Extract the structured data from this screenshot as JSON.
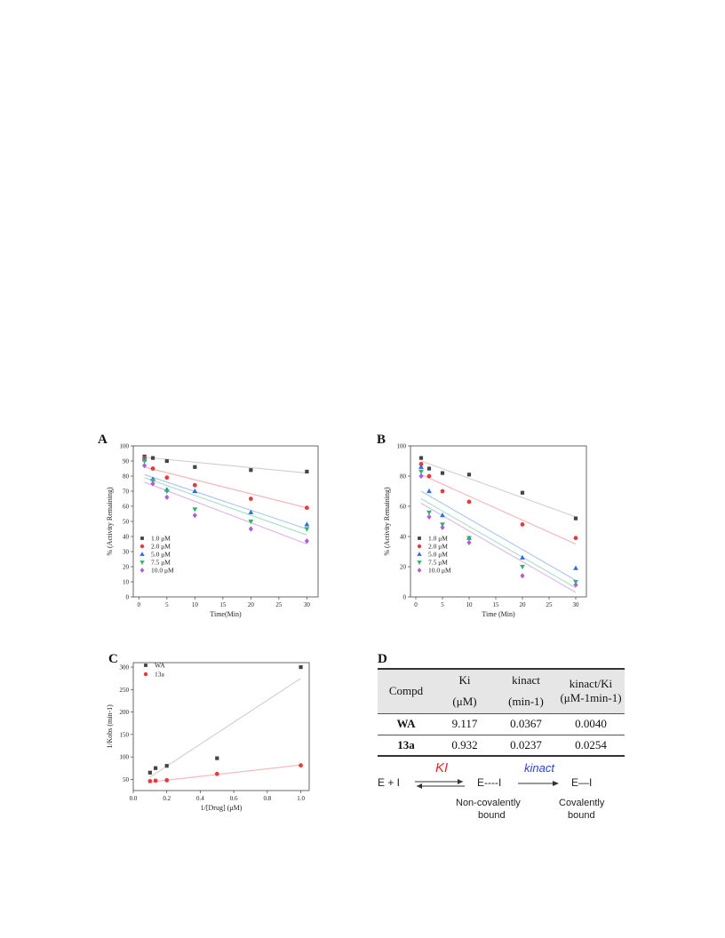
{
  "panels": {
    "a": "A",
    "b": "B",
    "c": "C",
    "d": "D"
  },
  "chart_data": [
    {
      "id": "A",
      "type": "scatter",
      "xlabel": "Time(Min)",
      "ylabel": "% (Activity Remaining)",
      "xlim": [
        -1,
        32
      ],
      "ylim": [
        0,
        100
      ],
      "xticks": [
        0,
        5,
        10,
        15,
        20,
        25,
        30
      ],
      "yticks": [
        0,
        10,
        20,
        30,
        40,
        50,
        60,
        70,
        80,
        90,
        100
      ],
      "legend_position": "bottom-left",
      "series": [
        {
          "name": "1.0 μM",
          "marker": "square",
          "color": "#444444",
          "line_color": "#cfcfcf",
          "x": [
            1,
            2.5,
            5,
            10,
            20,
            30
          ],
          "y": [
            93,
            92,
            90,
            86,
            84,
            83
          ],
          "fit": [
            92.5,
            82
          ]
        },
        {
          "name": "2.0 μM",
          "marker": "circle",
          "color": "#e8393d",
          "line_color": "#f2b5b8",
          "x": [
            1,
            2.5,
            5,
            10,
            20,
            30
          ],
          "y": [
            92,
            85,
            79,
            74,
            65,
            59
          ],
          "fit": [
            86,
            59
          ]
        },
        {
          "name": "5.0 μM",
          "marker": "triangle-up",
          "color": "#2d6fd3",
          "line_color": "#a9c6ee",
          "x": [
            1,
            2.5,
            5,
            10,
            20,
            30
          ],
          "y": [
            91,
            78,
            71,
            70,
            56,
            48
          ],
          "fit": [
            81,
            45
          ]
        },
        {
          "name": "7.5 μM",
          "marker": "triangle-down",
          "color": "#2fb569",
          "line_color": "#a8e0c2",
          "x": [
            1,
            2.5,
            5,
            10,
            20,
            30
          ],
          "y": [
            90,
            77,
            70,
            58,
            50,
            45
          ],
          "fit": [
            79,
            41
          ]
        },
        {
          "name": "10.0 μM",
          "marker": "diamond",
          "color": "#b45cd6",
          "line_color": "#dcb5ea",
          "x": [
            1,
            2.5,
            5,
            10,
            20,
            30
          ],
          "y": [
            87,
            75,
            66,
            54,
            45,
            37
          ],
          "fit": [
            76,
            35
          ]
        }
      ]
    },
    {
      "id": "B",
      "type": "scatter",
      "xlabel": "Time (Min)",
      "ylabel": "% (Activity Remaining)",
      "xlim": [
        -1,
        32
      ],
      "ylim": [
        0,
        100
      ],
      "xticks": [
        0,
        5,
        10,
        15,
        20,
        25,
        30
      ],
      "yticks": [
        0,
        20,
        40,
        60,
        80,
        100
      ],
      "legend_position": "bottom-left",
      "series": [
        {
          "name": "1.0 μM",
          "marker": "square",
          "color": "#444444",
          "line_color": "#cfcfcf",
          "x": [
            1,
            2.5,
            5,
            10,
            20,
            30
          ],
          "y": [
            92,
            85,
            82,
            81,
            69,
            52
          ],
          "fit": [
            90,
            53
          ]
        },
        {
          "name": "2.0 μM",
          "marker": "circle",
          "color": "#e8393d",
          "line_color": "#f2b5b8",
          "x": [
            1,
            2.5,
            5,
            10,
            20,
            30
          ],
          "y": [
            88,
            80,
            70,
            63,
            48,
            39
          ],
          "fit": [
            81,
            35
          ]
        },
        {
          "name": "5.0 μM",
          "marker": "triangle-up",
          "color": "#2d6fd3",
          "line_color": "#a9c6ee",
          "x": [
            1,
            2.5,
            5,
            10,
            20,
            30
          ],
          "y": [
            86,
            70,
            54,
            39,
            26,
            19
          ],
          "fit": [
            70,
            11
          ]
        },
        {
          "name": "7.5 μM",
          "marker": "triangle-down",
          "color": "#2fb569",
          "line_color": "#a8e0c2",
          "x": [
            1,
            2.5,
            5,
            10,
            20,
            30
          ],
          "y": [
            83,
            56,
            48,
            39,
            20,
            10
          ],
          "fit": [
            65,
            6
          ]
        },
        {
          "name": "10.0 μM",
          "marker": "diamond",
          "color": "#b45cd6",
          "line_color": "#dcb5ea",
          "x": [
            1,
            2.5,
            5,
            10,
            20,
            30
          ],
          "y": [
            80,
            53,
            46,
            36,
            14,
            8
          ],
          "fit": [
            62,
            3
          ]
        }
      ]
    },
    {
      "id": "C",
      "type": "scatter",
      "xlabel": "1/[Drug] (μM)",
      "ylabel": "1/Kobs (min-1)",
      "xlim": [
        0,
        1.05
      ],
      "ylim": [
        25,
        310
      ],
      "xticks": [
        0.0,
        0.2,
        0.4,
        0.6,
        0.8,
        1.0
      ],
      "yticks": [
        50,
        100,
        150,
        200,
        250,
        300
      ],
      "legend_position": "top-left",
      "series": [
        {
          "name": "WA",
          "marker": "square",
          "color": "#444444",
          "line_color": "#cfcfcf",
          "x": [
            0.1,
            0.133,
            0.2,
            0.5,
            1.0
          ],
          "y": [
            65,
            75,
            80,
            97,
            300
          ],
          "fit_x": [
            0.1,
            1.0
          ],
          "fit_y": [
            55,
            275
          ]
        },
        {
          "name": "13a",
          "marker": "circle",
          "color": "#e8393d",
          "line_color": "#f2b5b8",
          "x": [
            0.1,
            0.133,
            0.2,
            0.5,
            1.0
          ],
          "y": [
            46,
            47,
            48,
            62,
            81
          ],
          "fit_x": [
            0.1,
            1.0
          ],
          "fit_y": [
            44,
            82
          ]
        }
      ]
    }
  ],
  "table": {
    "header": {
      "compd": "Compd",
      "ki": "Ki",
      "ki_unit": "(μM)",
      "kinact": "kinact",
      "kinact_unit": "(min-1)",
      "ratio": "kinact/Ki",
      "ratio_unit": "(μM-1min-1)"
    },
    "rows": [
      {
        "compd": "WA",
        "ki": "9.117",
        "kinact": "0.0367",
        "ratio": "0.0040"
      },
      {
        "compd": "13a",
        "ki": "0.932",
        "kinact": "0.0237",
        "ratio": "0.0254"
      }
    ]
  },
  "scheme": {
    "left": "E + I",
    "ki_label": "KI",
    "middle": "E----I",
    "kinact_label": "kinact",
    "right": "E—I",
    "middle_caption_1": "Non-covalently",
    "middle_caption_2": "bound",
    "right_caption_1": "Covalently",
    "right_caption_2": "bound",
    "ki_color": "#e8222a",
    "kinact_color": "#2a3fd9"
  }
}
